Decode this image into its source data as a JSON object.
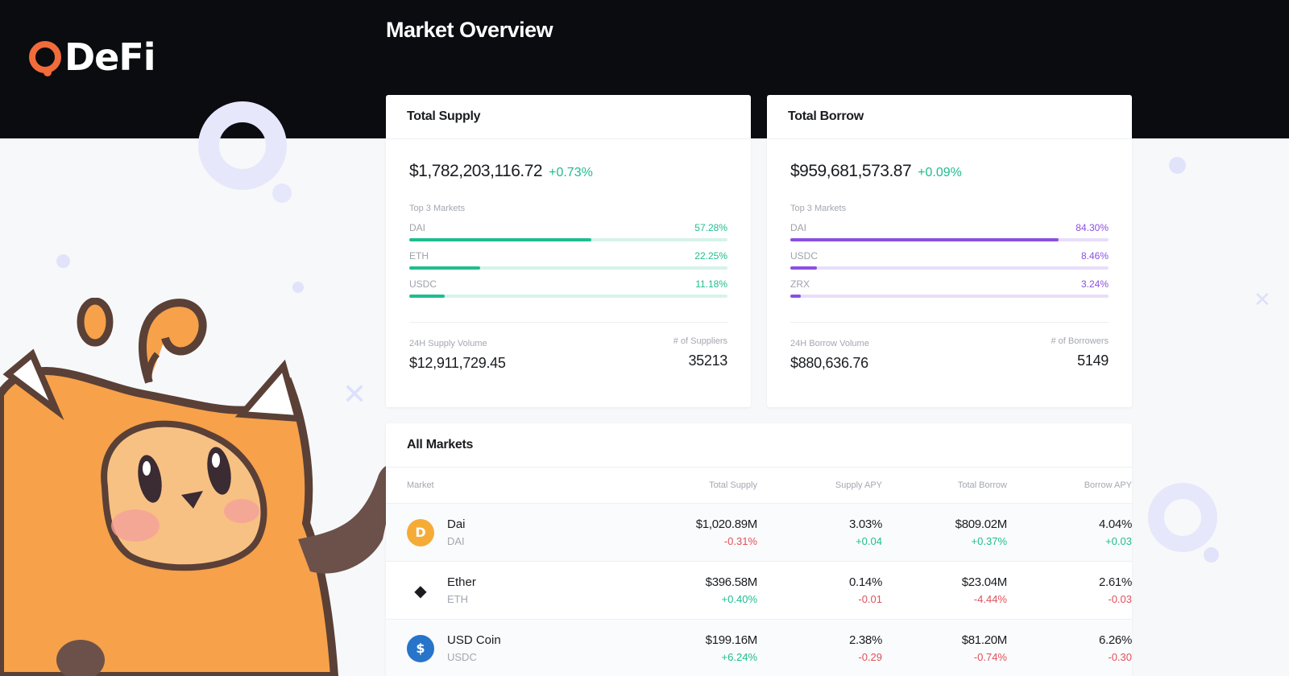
{
  "brand": {
    "logo_text": "DeFi",
    "accent": "#f26b3a"
  },
  "page_title": "Market Overview",
  "supply": {
    "heading": "Total Supply",
    "total": "$1,782,203,116.72",
    "change": "+0.73%",
    "top3_label": "Top 3 Markets",
    "markets": [
      {
        "name": "DAI",
        "pct": "57.28%",
        "share": 57.28
      },
      {
        "name": "ETH",
        "pct": "22.25%",
        "share": 22.25
      },
      {
        "name": "USDC",
        "pct": "11.18%",
        "share": 11.18
      }
    ],
    "volume_label": "24H Supply Volume",
    "volume": "$12,911,729.45",
    "count_label": "# of Suppliers",
    "count": "35213"
  },
  "borrow": {
    "heading": "Total Borrow",
    "total": "$959,681,573.87",
    "change": "+0.09%",
    "top3_label": "Top 3 Markets",
    "markets": [
      {
        "name": "DAI",
        "pct": "84.30%",
        "share": 84.3
      },
      {
        "name": "USDC",
        "pct": "8.46%",
        "share": 8.46
      },
      {
        "name": "ZRX",
        "pct": "3.24%",
        "share": 3.24
      }
    ],
    "volume_label": "24H Borrow Volume",
    "volume": "$880,636.76",
    "count_label": "# of Borrowers",
    "count": "5149"
  },
  "all_markets": {
    "heading": "All Markets",
    "columns": [
      "Market",
      "Total Supply",
      "Supply APY",
      "Total Borrow",
      "Borrow APY"
    ],
    "rows": [
      {
        "icon": "dai-icon",
        "glyph": "D",
        "name": "Dai",
        "symbol": "DAI",
        "total_supply": "$1,020.89M",
        "total_supply_chg": "-0.31%",
        "supply_apy": "3.03%",
        "supply_apy_chg": "+0.04",
        "total_borrow": "$809.02M",
        "total_borrow_chg": "+0.37%",
        "borrow_apy": "4.04%",
        "borrow_apy_chg": "+0.03"
      },
      {
        "icon": "ether-icon",
        "glyph": "◆",
        "name": "Ether",
        "symbol": "ETH",
        "total_supply": "$396.58M",
        "total_supply_chg": "+0.40%",
        "supply_apy": "0.14%",
        "supply_apy_chg": "-0.01",
        "total_borrow": "$23.04M",
        "total_borrow_chg": "-4.44%",
        "borrow_apy": "2.61%",
        "borrow_apy_chg": "-0.03"
      },
      {
        "icon": "usdc-icon",
        "glyph": "$",
        "name": "USD Coin",
        "symbol": "USDC",
        "total_supply": "$199.16M",
        "total_supply_chg": "+6.24%",
        "supply_apy": "2.38%",
        "supply_apy_chg": "-0.29",
        "total_borrow": "$81.20M",
        "total_borrow_chg": "-0.74%",
        "borrow_apy": "6.26%",
        "borrow_apy_chg": "-0.30"
      }
    ]
  },
  "colors": {
    "positive": "#1fbd8e",
    "negative": "#e0505a",
    "borrow_accent": "#8b4fe0"
  }
}
